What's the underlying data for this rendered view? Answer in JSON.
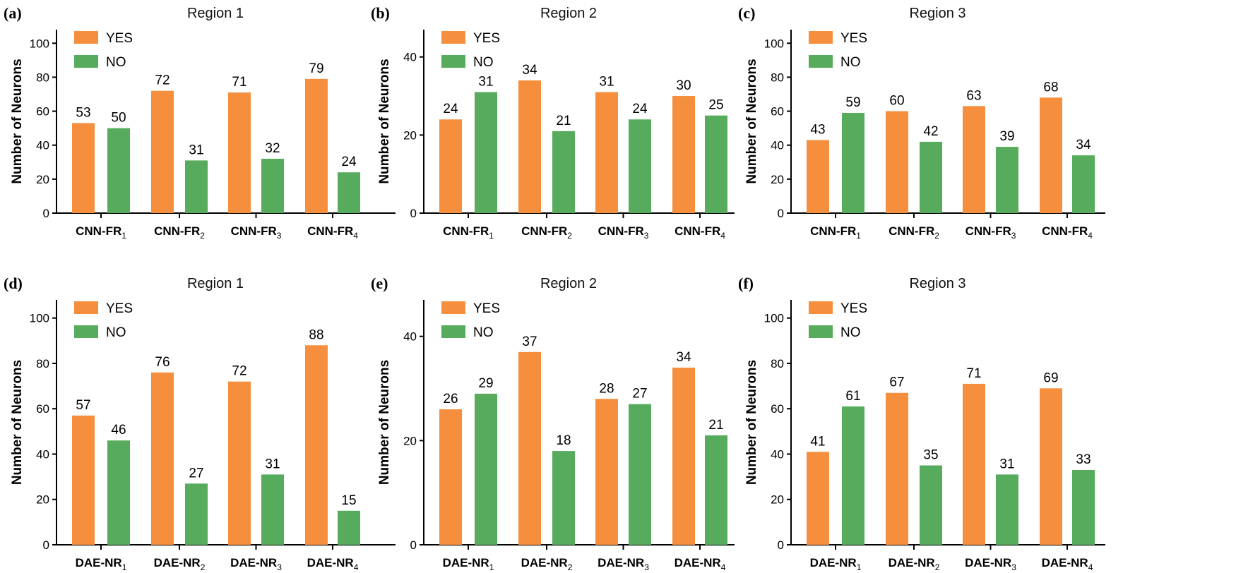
{
  "colors": {
    "yes": "#F58F3E",
    "no": "#56AB5D"
  },
  "chart_data": [
    {
      "type": "bar",
      "panel_label": "(a)",
      "title": "Region 1",
      "ylabel": "Number of Neurons",
      "ylim": [
        0,
        108
      ],
      "yticks": [
        0,
        20,
        40,
        60,
        80,
        100
      ],
      "categories": [
        [
          "CNN-FR",
          "1"
        ],
        [
          "CNN-FR",
          "2"
        ],
        [
          "CNN-FR",
          "3"
        ],
        [
          "CNN-FR",
          "4"
        ]
      ],
      "legend_position": "top-left",
      "series": [
        {
          "name": "YES",
          "values": [
            53,
            72,
            71,
            79
          ]
        },
        {
          "name": "NO",
          "values": [
            50,
            31,
            32,
            24
          ]
        }
      ]
    },
    {
      "type": "bar",
      "panel_label": "(b)",
      "title": "Region 2",
      "ylabel": "Number of Neurons",
      "ylim": [
        0,
        47
      ],
      "yticks": [
        0,
        20,
        40
      ],
      "categories": [
        [
          "CNN-FR",
          "1"
        ],
        [
          "CNN-FR",
          "2"
        ],
        [
          "CNN-FR",
          "3"
        ],
        [
          "CNN-FR",
          "4"
        ]
      ],
      "legend_position": "top-left",
      "series": [
        {
          "name": "YES",
          "values": [
            24,
            34,
            31,
            30
          ]
        },
        {
          "name": "NO",
          "values": [
            31,
            21,
            24,
            25
          ]
        }
      ]
    },
    {
      "type": "bar",
      "panel_label": "(c)",
      "title": "Region 3",
      "ylabel": "Number of Neurons",
      "ylim": [
        0,
        108
      ],
      "yticks": [
        0,
        20,
        40,
        60,
        80,
        100
      ],
      "categories": [
        [
          "CNN-FR",
          "1"
        ],
        [
          "CNN-FR",
          "2"
        ],
        [
          "CNN-FR",
          "3"
        ],
        [
          "CNN-FR",
          "4"
        ]
      ],
      "legend_position": "top-left",
      "series": [
        {
          "name": "YES",
          "values": [
            43,
            60,
            63,
            68
          ]
        },
        {
          "name": "NO",
          "values": [
            59,
            42,
            39,
            34
          ]
        }
      ]
    },
    {
      "type": "bar",
      "panel_label": "(d)",
      "title": "Region 1",
      "ylabel": "Number of Neurons",
      "ylim": [
        0,
        108
      ],
      "yticks": [
        0,
        20,
        40,
        60,
        80,
        100
      ],
      "categories": [
        [
          "DAE-NR",
          "1"
        ],
        [
          "DAE-NR",
          "2"
        ],
        [
          "DAE-NR",
          "3"
        ],
        [
          "DAE-NR",
          "4"
        ]
      ],
      "legend_position": "top-left",
      "series": [
        {
          "name": "YES",
          "values": [
            57,
            76,
            72,
            88
          ]
        },
        {
          "name": "NO",
          "values": [
            46,
            27,
            31,
            15
          ]
        }
      ]
    },
    {
      "type": "bar",
      "panel_label": "(e)",
      "title": "Region 2",
      "ylabel": "Number of Neurons",
      "ylim": [
        0,
        47
      ],
      "yticks": [
        0,
        20,
        40
      ],
      "categories": [
        [
          "DAE-NR",
          "1"
        ],
        [
          "DAE-NR",
          "2"
        ],
        [
          "DAE-NR",
          "3"
        ],
        [
          "DAE-NR",
          "4"
        ]
      ],
      "legend_position": "top-left",
      "series": [
        {
          "name": "YES",
          "values": [
            26,
            37,
            28,
            34
          ]
        },
        {
          "name": "NO",
          "values": [
            29,
            18,
            27,
            21
          ]
        }
      ]
    },
    {
      "type": "bar",
      "panel_label": "(f)",
      "title": "Region 3",
      "ylabel": "Number of Neurons",
      "ylim": [
        0,
        108
      ],
      "yticks": [
        0,
        20,
        40,
        60,
        80,
        100
      ],
      "categories": [
        [
          "DAE-NR",
          "1"
        ],
        [
          "DAE-NR",
          "2"
        ],
        [
          "DAE-NR",
          "3"
        ],
        [
          "DAE-NR",
          "4"
        ]
      ],
      "legend_position": "top-left",
      "series": [
        {
          "name": "YES",
          "values": [
            41,
            67,
            71,
            69
          ]
        },
        {
          "name": "NO",
          "values": [
            61,
            35,
            31,
            33
          ]
        }
      ]
    }
  ]
}
